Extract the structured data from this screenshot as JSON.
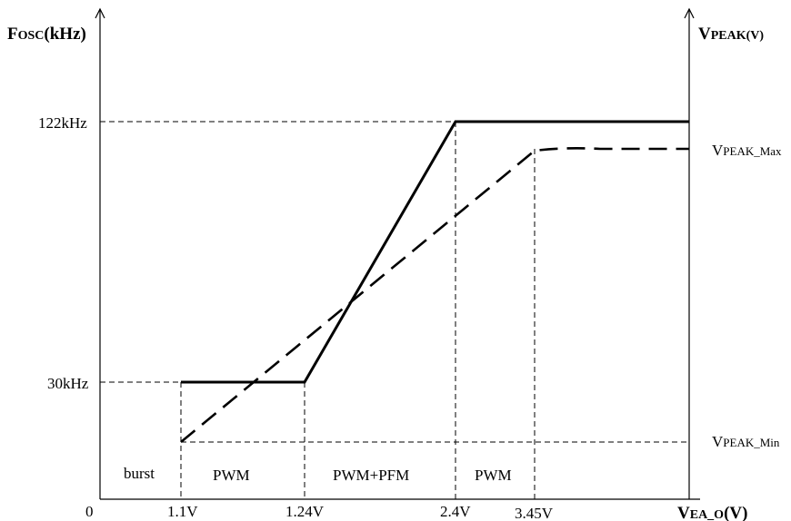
{
  "chart_data": {
    "type": "line",
    "left_axis": {
      "label_main": "F",
      "label_sub": "OSC",
      "label_unit": "(kHz)"
    },
    "right_axis": {
      "label_main": "V",
      "label_sub": "PEAK",
      "label_unit": "(V)"
    },
    "x_axis": {
      "label_main": "V",
      "label_sub": "EA_O",
      "label_unit": "(V)",
      "origin_label": "0"
    },
    "x_ticks": [
      {
        "value": 1.1,
        "label": "1.1V"
      },
      {
        "value": 1.24,
        "label": "1.24V"
      },
      {
        "value": 2.4,
        "label": "2.4V"
      },
      {
        "value": 3.45,
        "label": "3.45V"
      }
    ],
    "y_ticks_left": [
      {
        "value": 30,
        "label": "30kHz"
      },
      {
        "value": 122,
        "label": "122kHz"
      }
    ],
    "right_labels": [
      {
        "main": "V",
        "sub": "PEAK_Max"
      },
      {
        "main": "V",
        "sub": "PEAK_Min"
      }
    ],
    "regions": [
      {
        "label": "burst"
      },
      {
        "label": "PWM"
      },
      {
        "label": "PWM+PFM"
      },
      {
        "label": "PWM"
      }
    ],
    "series": [
      {
        "style": "solid"
      },
      {
        "style": "dashed"
      }
    ]
  }
}
